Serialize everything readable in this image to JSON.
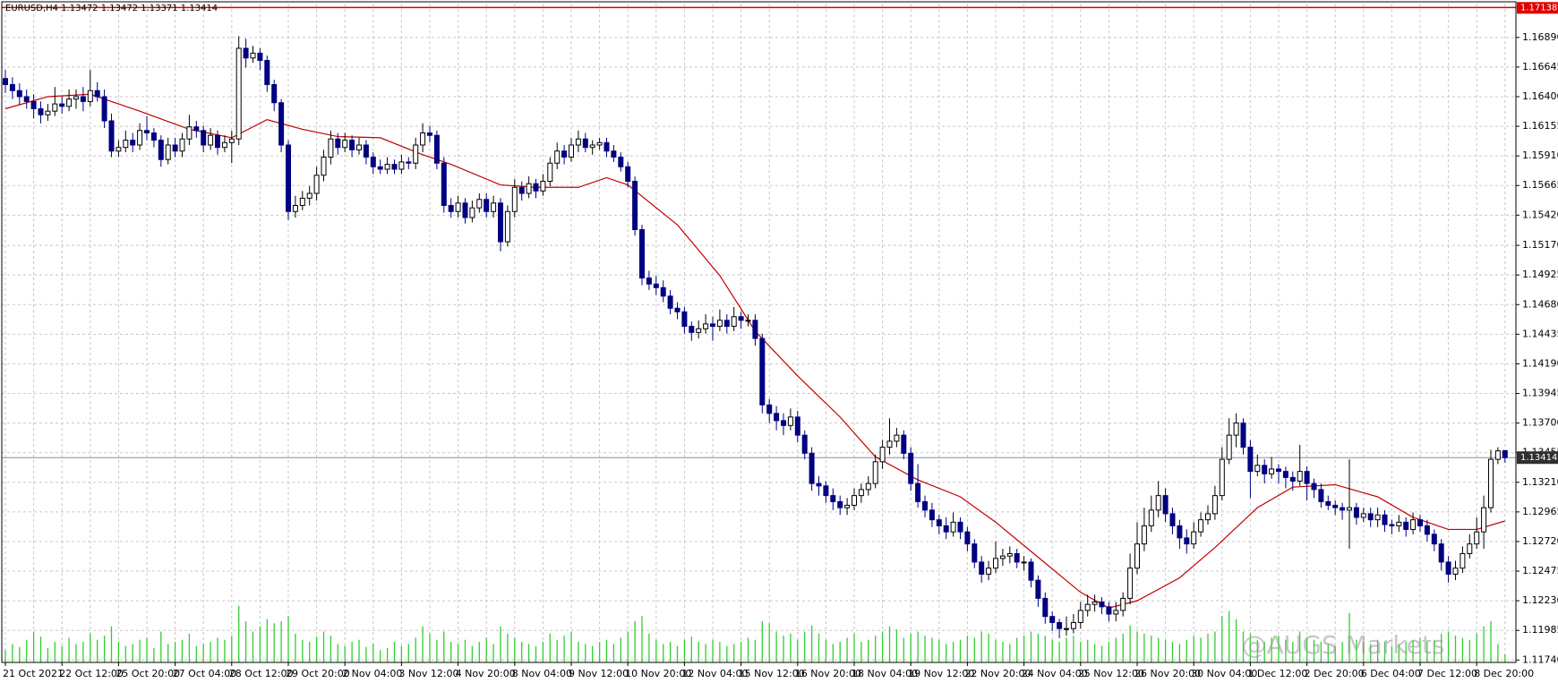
{
  "chart_data": {
    "type": "candlestick",
    "title": "EURUSD,H4  1.13472 1.13472 1.13371 1.13414",
    "categories": [
      "21 Oct 2021",
      null,
      null,
      null,
      null,
      null,
      null,
      null,
      "22 Oct 12:00",
      null,
      null,
      null,
      null,
      null,
      null,
      null,
      "25 Oct 20:00",
      null,
      null,
      null,
      null,
      null,
      null,
      null,
      "27 Oct 04:00",
      null,
      null,
      null,
      null,
      null,
      null,
      null,
      "28 Oct 12:00",
      null,
      null,
      null,
      null,
      null,
      null,
      null,
      "29 Oct 20:00",
      null,
      null,
      null,
      null,
      null,
      null,
      null,
      "2 Nov 04:00",
      null,
      null,
      null,
      null,
      null,
      null,
      null,
      "3 Nov 12:00",
      null,
      null,
      null,
      null,
      null,
      null,
      null,
      "4 Nov 20:00",
      null,
      null,
      null,
      null,
      null,
      null,
      null,
      "8 Nov 04:00",
      null,
      null,
      null,
      null,
      null,
      null,
      null,
      "9 Nov 12:00",
      null,
      null,
      null,
      null,
      null,
      null,
      null,
      "10 Nov 20:00",
      null,
      null,
      null,
      null,
      null,
      null,
      null,
      "12 Nov 04:00",
      null,
      null,
      null,
      null,
      null,
      null,
      null,
      "15 Nov 12:00",
      null,
      null,
      null,
      null,
      null,
      null,
      null,
      "16 Nov 20:00",
      null,
      null,
      null,
      null,
      null,
      null,
      null,
      "18 Nov 04:00",
      null,
      null,
      null,
      null,
      null,
      null,
      null,
      "19 Nov 12:00",
      null,
      null,
      null,
      null,
      null,
      null,
      null,
      "22 Nov 20:00",
      null,
      null,
      null,
      null,
      null,
      null,
      null,
      "24 Nov 04:00",
      null,
      null,
      null,
      null,
      null,
      null,
      null,
      "25 Nov 12:00",
      null,
      null,
      null,
      null,
      null,
      null,
      null,
      "26 Nov 20:00",
      null,
      null,
      null,
      null,
      null,
      null,
      null,
      "30 Nov 04:00",
      null,
      null,
      null,
      null,
      null,
      null,
      null,
      "1 Dec 12:00",
      null,
      null,
      null,
      null,
      null,
      null,
      null,
      "2 Dec 20:00",
      null,
      null,
      null,
      null,
      null,
      null,
      null,
      "6 Dec 04:00",
      null,
      null,
      null,
      null,
      null,
      null,
      null,
      "7 Dec 12:00",
      null,
      null,
      null,
      null,
      null,
      null,
      null,
      "8 Dec 20:00",
      null,
      null,
      null,
      null
    ],
    "open": [
      1.1655,
      1.165,
      1.1645,
      1.164,
      1.1636,
      1.163,
      1.1625,
      1.1628,
      1.1634,
      1.1632,
      1.1638,
      1.164,
      1.1636,
      1.1645,
      1.164,
      1.162,
      1.1595,
      1.1598,
      1.1604,
      1.16,
      1.1612,
      1.161,
      1.1604,
      1.1588,
      1.16,
      1.1595,
      1.1605,
      1.1615,
      1.1612,
      1.16,
      1.1608,
      1.1598,
      1.1602,
      1.1605,
      1.168,
      1.1672,
      1.1676,
      1.167,
      1.165,
      1.1635,
      1.16,
      1.1545,
      1.155,
      1.1556,
      1.156,
      1.1575,
      1.159,
      1.1605,
      1.1598,
      1.1604,
      1.1596,
      1.16,
      1.159,
      1.1582,
      1.158,
      1.1584,
      1.158,
      1.1586,
      1.1585,
      1.16,
      1.161,
      1.1608,
      1.1585,
      1.155,
      1.1545,
      1.1552,
      1.154,
      1.1548,
      1.1555,
      1.1545,
      1.1552,
      1.152,
      1.1545,
      1.1565,
      1.156,
      1.1568,
      1.1562,
      1.157,
      1.1585,
      1.1595,
      1.159,
      1.16,
      1.1605,
      1.1598,
      1.16,
      1.1602,
      1.1595,
      1.159,
      1.1582,
      1.157,
      1.153,
      1.149,
      1.1485,
      1.1482,
      1.1475,
      1.1465,
      1.1462,
      1.145,
      1.1445,
      1.1448,
      1.1452,
      1.145,
      1.1455,
      1.145,
      1.1458,
      1.1455,
      1.1455,
      1.144,
      1.1385,
      1.1378,
      1.1372,
      1.1368,
      1.1375,
      1.136,
      1.1345,
      1.132,
      1.1318,
      1.131,
      1.1305,
      1.13,
      1.1302,
      1.131,
      1.1315,
      1.132,
      1.1338,
      1.135,
      1.1355,
      1.136,
      1.1345,
      1.132,
      1.1305,
      1.1298,
      1.129,
      1.1285,
      1.128,
      1.1288,
      1.128,
      1.127,
      1.1255,
      1.1245,
      1.125,
      1.1258,
      1.126,
      1.1262,
      1.1255,
      1.1255,
      1.124,
      1.1225,
      1.121,
      1.1205,
      1.12,
      1.12,
      1.1205,
      1.1215,
      1.122,
      1.1222,
      1.1218,
      1.1212,
      1.1215,
      1.1225,
      1.125,
      1.127,
      1.1285,
      1.1298,
      1.131,
      1.1295,
      1.1285,
      1.1275,
      1.127,
      1.128,
      1.129,
      1.1295,
      1.131,
      1.134,
      1.136,
      1.137,
      1.135,
      1.133,
      1.1335,
      1.1328,
      1.1332,
      1.133,
      1.1325,
      1.1322,
      1.133,
      1.132,
      1.1315,
      1.1305,
      1.1302,
      1.13,
      1.1298,
      1.13,
      1.1292,
      1.1295,
      1.129,
      1.1294,
      1.1286,
      1.1285,
      1.1288,
      1.1282,
      1.129,
      1.1285,
      1.1278,
      1.127,
      1.1255,
      1.1245,
      1.125,
      1.1262,
      1.127,
      1.128,
      1.13,
      1.134,
      1.13472
    ],
    "high": [
      1.1662,
      1.1656,
      1.1651,
      1.1646,
      1.1642,
      1.1636,
      1.1634,
      1.1648,
      1.164,
      1.1646,
      1.1646,
      1.1648,
      1.1662,
      1.1652,
      1.1646,
      1.1626,
      1.1604,
      1.1612,
      1.161,
      1.1618,
      1.1624,
      1.1614,
      1.1608,
      1.1606,
      1.1606,
      1.161,
      1.1625,
      1.162,
      1.1616,
      1.1614,
      1.1612,
      1.1608,
      1.1612,
      1.169,
      1.1688,
      1.1682,
      1.168,
      1.1674,
      1.1654,
      1.1638,
      1.1604,
      1.1558,
      1.1562,
      1.1566,
      1.1582,
      1.1596,
      1.1612,
      1.161,
      1.161,
      1.1608,
      1.1606,
      1.1604,
      1.1594,
      1.1588,
      1.159,
      1.1588,
      1.1592,
      1.159,
      1.1606,
      1.1618,
      1.1616,
      1.1612,
      1.159,
      1.1556,
      1.1558,
      1.1556,
      1.1554,
      1.156,
      1.156,
      1.1558,
      1.1556,
      1.155,
      1.1572,
      1.157,
      1.1574,
      1.1572,
      1.1576,
      1.159,
      1.1602,
      1.16,
      1.1606,
      1.1612,
      1.161,
      1.1604,
      1.1606,
      1.1606,
      1.16,
      1.1594,
      1.1586,
      1.1574,
      1.1534,
      1.1496,
      1.1492,
      1.1488,
      1.148,
      1.147,
      1.1466,
      1.1454,
      1.1455,
      1.146,
      1.1458,
      1.1464,
      1.146,
      1.1466,
      1.1462,
      1.146,
      1.146,
      1.1444,
      1.139,
      1.1384,
      1.1378,
      1.1382,
      1.138,
      1.1364,
      1.135,
      1.1326,
      1.1322,
      1.1316,
      1.131,
      1.1308,
      1.1316,
      1.132,
      1.1326,
      1.1344,
      1.1356,
      1.1374,
      1.1366,
      1.1364,
      1.135,
      1.1336,
      1.131,
      1.1304,
      1.1294,
      1.1292,
      1.1296,
      1.1292,
      1.1284,
      1.1274,
      1.126,
      1.1256,
      1.1272,
      1.1266,
      1.1268,
      1.1266,
      1.126,
      1.1258,
      1.1244,
      1.123,
      1.1214,
      1.1208,
      1.121,
      1.1212,
      1.1222,
      1.1228,
      1.1228,
      1.1226,
      1.1222,
      1.1222,
      1.123,
      1.1262,
      1.1288,
      1.13,
      1.131,
      1.1322,
      1.1316,
      1.13,
      1.129,
      1.1282,
      1.1288,
      1.1296,
      1.1302,
      1.1318,
      1.135,
      1.1374,
      1.1378,
      1.1374,
      1.1356,
      1.1344,
      1.134,
      1.1342,
      1.1336,
      1.1334,
      1.133,
      1.1352,
      1.1334,
      1.1324,
      1.132,
      1.131,
      1.1306,
      1.1304,
      1.134,
      1.1304,
      1.13,
      1.13,
      1.13,
      1.1298,
      1.129,
      1.1294,
      1.1292,
      1.1296,
      1.1294,
      1.129,
      1.1282,
      1.1274,
      1.126,
      1.1256,
      1.1268,
      1.1278,
      1.1292,
      1.131,
      1.1348,
      1.135,
      1.13472
    ],
    "low": [
      1.1643,
      1.1638,
      1.1633,
      1.163,
      1.1622,
      1.1618,
      1.162,
      1.1624,
      1.1626,
      1.1628,
      1.163,
      1.1628,
      1.1632,
      1.1636,
      1.1614,
      1.159,
      1.159,
      1.1594,
      1.1594,
      1.1596,
      1.1604,
      1.1598,
      1.1582,
      1.1584,
      1.159,
      1.159,
      1.16,
      1.1606,
      1.1594,
      1.1596,
      1.1592,
      1.1594,
      1.1585,
      1.16,
      1.1664,
      1.1668,
      1.1662,
      1.1644,
      1.1628,
      1.1594,
      1.1538,
      1.154,
      1.1546,
      1.155,
      1.1554,
      1.157,
      1.1584,
      1.1592,
      1.1594,
      1.159,
      1.1592,
      1.1584,
      1.1576,
      1.1576,
      1.1576,
      1.1576,
      1.1576,
      1.158,
      1.158,
      1.1594,
      1.1602,
      1.158,
      1.1544,
      1.154,
      1.154,
      1.1535,
      1.1536,
      1.1544,
      1.154,
      1.154,
      1.1512,
      1.1516,
      1.154,
      1.1554,
      1.1556,
      1.1556,
      1.1558,
      1.1566,
      1.158,
      1.1584,
      1.1586,
      1.1594,
      1.1594,
      1.1592,
      1.1596,
      1.159,
      1.1586,
      1.1578,
      1.1565,
      1.1525,
      1.1484,
      1.148,
      1.1476,
      1.147,
      1.146,
      1.1456,
      1.1444,
      1.1438,
      1.144,
      1.1444,
      1.1438,
      1.1446,
      1.1444,
      1.1446,
      1.1448,
      1.145,
      1.1434,
      1.1378,
      1.137,
      1.1364,
      1.136,
      1.1364,
      1.1354,
      1.134,
      1.1314,
      1.131,
      1.1304,
      1.1298,
      1.1294,
      1.1294,
      1.1298,
      1.1304,
      1.131,
      1.1316,
      1.1332,
      1.1344,
      1.135,
      1.134,
      1.1314,
      1.13,
      1.1292,
      1.1284,
      1.1278,
      1.1274,
      1.1276,
      1.1274,
      1.1264,
      1.125,
      1.1238,
      1.124,
      1.1246,
      1.1252,
      1.1254,
      1.125,
      1.1248,
      1.1234,
      1.1218,
      1.1204,
      1.1198,
      1.1192,
      1.1194,
      1.1196,
      1.12,
      1.121,
      1.1214,
      1.1212,
      1.1206,
      1.1206,
      1.121,
      1.122,
      1.1245,
      1.1264,
      1.128,
      1.1292,
      1.1288,
      1.1278,
      1.1266,
      1.1262,
      1.1266,
      1.1276,
      1.1286,
      1.129,
      1.1306,
      1.1336,
      1.135,
      1.1344,
      1.1308,
      1.1326,
      1.132,
      1.1324,
      1.132,
      1.1316,
      1.1314,
      1.1318,
      1.1306,
      1.1308,
      1.13,
      1.1298,
      1.1294,
      1.129,
      1.1266,
      1.1286,
      1.1288,
      1.1284,
      1.1284,
      1.128,
      1.1278,
      1.128,
      1.1276,
      1.1278,
      1.128,
      1.1272,
      1.1264,
      1.1248,
      1.1238,
      1.124,
      1.1246,
      1.1258,
      1.1266,
      1.1266,
      1.1296,
      1.1336,
      1.13371
    ],
    "close": [
      1.165,
      1.1645,
      1.164,
      1.1636,
      1.163,
      1.1625,
      1.1628,
      1.1634,
      1.1632,
      1.1638,
      1.164,
      1.1636,
      1.1645,
      1.164,
      1.162,
      1.1595,
      1.1598,
      1.1604,
      1.16,
      1.1612,
      1.161,
      1.1604,
      1.1588,
      1.16,
      1.1595,
      1.1605,
      1.1615,
      1.1612,
      1.16,
      1.1608,
      1.1598,
      1.1602,
      1.1605,
      1.168,
      1.1672,
      1.1676,
      1.167,
      1.165,
      1.1635,
      1.16,
      1.1545,
      1.155,
      1.1556,
      1.156,
      1.1575,
      1.159,
      1.1605,
      1.1598,
      1.1604,
      1.1596,
      1.16,
      1.159,
      1.1582,
      1.158,
      1.1584,
      1.158,
      1.1586,
      1.1585,
      1.16,
      1.161,
      1.1608,
      1.1585,
      1.155,
      1.1545,
      1.1552,
      1.154,
      1.1548,
      1.1555,
      1.1545,
      1.1552,
      1.152,
      1.1545,
      1.1565,
      1.156,
      1.1568,
      1.1562,
      1.157,
      1.1585,
      1.1595,
      1.159,
      1.16,
      1.1605,
      1.1598,
      1.16,
      1.1602,
      1.1595,
      1.159,
      1.1582,
      1.157,
      1.153,
      1.149,
      1.1485,
      1.1482,
      1.1475,
      1.1465,
      1.1462,
      1.145,
      1.1445,
      1.1448,
      1.1452,
      1.145,
      1.1455,
      1.145,
      1.1458,
      1.1455,
      1.1455,
      1.144,
      1.1385,
      1.1378,
      1.1372,
      1.1368,
      1.1375,
      1.136,
      1.1345,
      1.132,
      1.1318,
      1.131,
      1.1305,
      1.13,
      1.1302,
      1.131,
      1.1315,
      1.132,
      1.1338,
      1.135,
      1.1355,
      1.136,
      1.1345,
      1.132,
      1.1305,
      1.1298,
      1.129,
      1.1285,
      1.128,
      1.1288,
      1.128,
      1.127,
      1.1255,
      1.1245,
      1.125,
      1.1258,
      1.126,
      1.1262,
      1.1255,
      1.1255,
      1.124,
      1.1225,
      1.121,
      1.1205,
      1.12,
      1.12,
      1.1205,
      1.1215,
      1.122,
      1.1222,
      1.1218,
      1.1212,
      1.1215,
      1.1225,
      1.125,
      1.127,
      1.1285,
      1.1298,
      1.131,
      1.1295,
      1.1285,
      1.1275,
      1.127,
      1.128,
      1.129,
      1.1295,
      1.131,
      1.134,
      1.136,
      1.137,
      1.135,
      1.133,
      1.1335,
      1.1328,
      1.1332,
      1.133,
      1.1325,
      1.1322,
      1.133,
      1.132,
      1.1315,
      1.1305,
      1.1302,
      1.13,
      1.1298,
      1.13,
      1.1292,
      1.1295,
      1.129,
      1.1294,
      1.1286,
      1.1285,
      1.1288,
      1.1282,
      1.129,
      1.1285,
      1.1278,
      1.127,
      1.1255,
      1.1245,
      1.125,
      1.1262,
      1.127,
      1.128,
      1.13,
      1.134,
      1.1347,
      1.13414
    ],
    "color_up": "#ffffff",
    "color_down": "#000080",
    "wick_color": "#000000",
    "volume": {
      "color": "#32cd32",
      "values": [
        12,
        18,
        15,
        22,
        30,
        25,
        14,
        20,
        16,
        24,
        18,
        20,
        28,
        22,
        26,
        35,
        20,
        16,
        18,
        22,
        24,
        14,
        30,
        18,
        20,
        22,
        28,
        16,
        18,
        20,
        24,
        22,
        26,
        55,
        40,
        30,
        35,
        42,
        38,
        40,
        45,
        28,
        22,
        20,
        25,
        30,
        26,
        18,
        16,
        20,
        22,
        15,
        18,
        12,
        14,
        20,
        16,
        18,
        24,
        35,
        28,
        22,
        30,
        20,
        18,
        22,
        16,
        20,
        24,
        18,
        35,
        28,
        24,
        20,
        18,
        16,
        20,
        28,
        22,
        26,
        30,
        20,
        18,
        16,
        20,
        22,
        18,
        24,
        30,
        40,
        45,
        28,
        22,
        18,
        20,
        16,
        22,
        25,
        20,
        18,
        22,
        20,
        16,
        18,
        20,
        24,
        22,
        40,
        38,
        30,
        26,
        28,
        22,
        30,
        36,
        28,
        22,
        18,
        20,
        24,
        28,
        20,
        22,
        26,
        30,
        35,
        32,
        24,
        28,
        30,
        26,
        24,
        22,
        18,
        20,
        22,
        26,
        24,
        30,
        28,
        22,
        20,
        18,
        24,
        26,
        30,
        28,
        26,
        22,
        20,
        24,
        26,
        20,
        22,
        18,
        16,
        20,
        24,
        28,
        36,
        30,
        28,
        26,
        24,
        22,
        20,
        18,
        22,
        26,
        24,
        28,
        30,
        45,
        50,
        42,
        30,
        28,
        22,
        20,
        24,
        26,
        22,
        20,
        30,
        24,
        22,
        20,
        18,
        16,
        20,
        48,
        22,
        20,
        18,
        22,
        20,
        16,
        18,
        20,
        22,
        24,
        20,
        22,
        28,
        30,
        26,
        24,
        22,
        28,
        35,
        40,
        18,
        8
      ]
    },
    "moving_average": {
      "color": "#c00000",
      "x": [
        0,
        6,
        12,
        19,
        26,
        32,
        37,
        42,
        47,
        53,
        59,
        63,
        70,
        75,
        81,
        85,
        88,
        95,
        101,
        106,
        112,
        118,
        123,
        129,
        135,
        140,
        146,
        152,
        156,
        160,
        166,
        171,
        177,
        182,
        188,
        194,
        199,
        204,
        208,
        212
      ],
      "values": [
        1.163,
        1.164,
        1.1642,
        1.1628,
        1.1613,
        1.1606,
        1.1621,
        1.1613,
        1.1607,
        1.1606,
        1.1592,
        1.1584,
        1.1567,
        1.1565,
        1.1565,
        1.1573,
        1.1567,
        1.1534,
        1.1492,
        1.1446,
        1.1409,
        1.1375,
        1.1342,
        1.1323,
        1.1309,
        1.1288,
        1.1259,
        1.123,
        1.1217,
        1.1223,
        1.1242,
        1.1267,
        1.13,
        1.1317,
        1.1319,
        1.1309,
        1.1292,
        1.1282,
        1.1282,
        1.1289
      ]
    },
    "ylim": [
      1.1172,
      1.1717
    ],
    "yticks": [
      {
        "value": 1.1689,
        "label": "1.16890"
      },
      1.16645,
      {
        "value": 1.164,
        "label": "1.16400"
      },
      1.16155,
      {
        "value": 1.1591,
        "label": "1.15910"
      },
      1.15665,
      {
        "value": 1.1542,
        "label": "1.15420"
      },
      {
        "value": 1.1517,
        "label": "1.15170"
      },
      1.14925,
      {
        "value": 1.1468,
        "label": "1.14680"
      },
      1.14435,
      {
        "value": 1.1419,
        "label": "1.14190"
      },
      1.13945,
      {
        "value": 1.137,
        "label": "1.13700"
      },
      1.13455,
      {
        "value": 1.1321,
        "label": "1.13210"
      },
      1.12965,
      {
        "value": 1.1272,
        "label": "1.12720"
      },
      1.12475,
      {
        "value": 1.1223,
        "label": "1.12230"
      },
      1.11985,
      {
        "value": 1.1174,
        "label": "1.11740"
      }
    ],
    "grid": true,
    "price_line": 1.13414,
    "alert_line": 1.17138,
    "watermark": "@AUGS Markets"
  }
}
